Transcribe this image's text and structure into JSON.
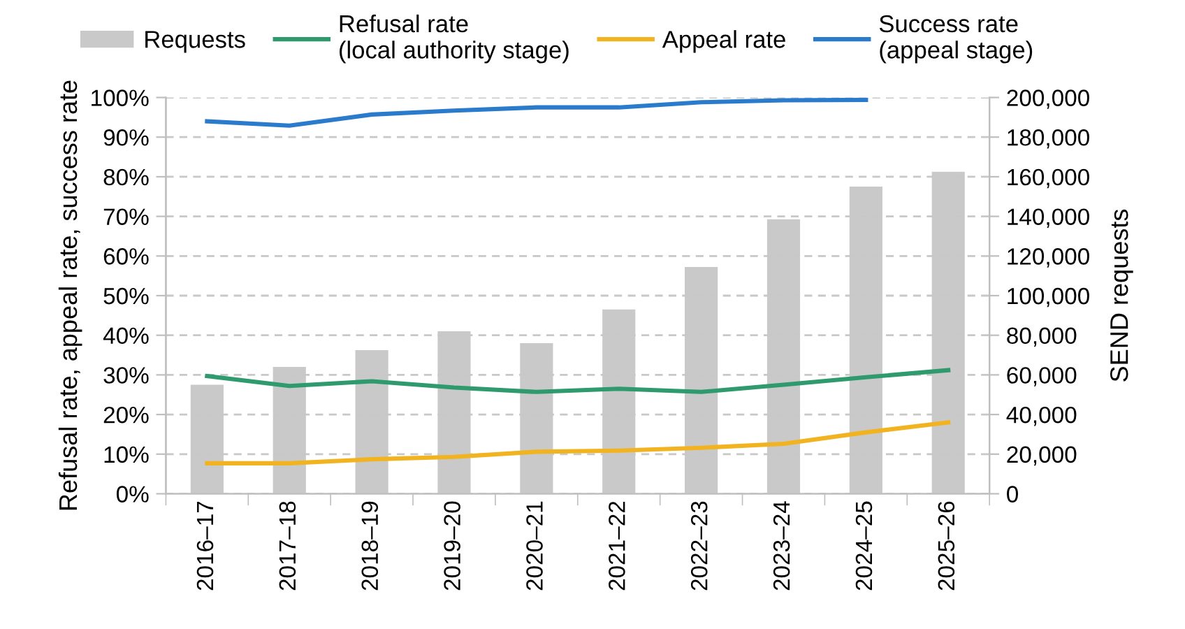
{
  "chart_data": {
    "type": "line",
    "categories": [
      "2016–17",
      "2017–18",
      "2018–19",
      "2019–20",
      "2020–21",
      "2021–22",
      "2022–23",
      "2023–24",
      "2024–25",
      "2025–26"
    ],
    "ylabel": "Refusal rate, appeal rate, success rate",
    "y2label": "SEND requests",
    "series": [
      {
        "name": "Requests",
        "type": "bar",
        "axis": "y2",
        "color": "#c9c9c9",
        "values": [
          55000,
          64000,
          72500,
          82000,
          76000,
          93000,
          114500,
          138500,
          155000,
          162500
        ]
      },
      {
        "name": "Refusal rate\n(local authority stage)",
        "color": "#2e9a6d",
        "values": [
          29.7,
          27.2,
          28.4,
          26.8,
          25.7,
          26.5,
          25.7,
          27.5,
          29.4,
          31.2
        ]
      },
      {
        "name": "Appeal rate",
        "color": "#f2b321",
        "values": [
          7.7,
          7.7,
          8.7,
          9.3,
          10.6,
          10.9,
          11.6,
          12.6,
          15.5,
          18.0
        ]
      },
      {
        "name": "Success rate\n(appeal stage)",
        "color": "#2b7bcd",
        "values": [
          94.0,
          92.9,
          95.7,
          96.7,
          97.5,
          97.5,
          98.8,
          99.3,
          99.4,
          null
        ]
      }
    ],
    "ylim": [
      0,
      100
    ],
    "yticks": [
      {
        "value": 0,
        "label": "0%"
      },
      {
        "value": 10,
        "label": "10%"
      },
      {
        "value": 20,
        "label": "20%"
      },
      {
        "value": 30,
        "label": "30%"
      },
      {
        "value": 40,
        "label": "40%"
      },
      {
        "value": 50,
        "label": "50%"
      },
      {
        "value": 60,
        "label": "60%"
      },
      {
        "value": 70,
        "label": "70%"
      },
      {
        "value": 80,
        "label": "80%"
      },
      {
        "value": 90,
        "label": "90%"
      },
      {
        "value": 100,
        "label": "100%"
      }
    ],
    "y2lim": [
      0,
      200000
    ],
    "y2ticks": [
      {
        "value": 0,
        "label": "0"
      },
      {
        "value": 20000,
        "label": "20,000"
      },
      {
        "value": 40000,
        "label": "40,000"
      },
      {
        "value": 60000,
        "label": "60,000"
      },
      {
        "value": 80000,
        "label": "80,000"
      },
      {
        "value": 100000,
        "label": "100,000"
      },
      {
        "value": 120000,
        "label": "120,000"
      },
      {
        "value": 140000,
        "label": "140,000"
      },
      {
        "value": 160000,
        "label": "160,000"
      },
      {
        "value": 180000,
        "label": "180,000"
      },
      {
        "value": 200000,
        "label": "200,000"
      }
    ],
    "grid": "y",
    "legend": "top",
    "marker": "none",
    "line_style": "solid"
  }
}
